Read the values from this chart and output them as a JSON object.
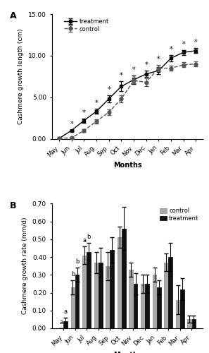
{
  "months": [
    "May",
    "Jun",
    "Jul",
    "Aug",
    "Sep",
    "Oct",
    "Nov",
    "Dec",
    "Jan",
    "Feb",
    "Mar",
    "Apr"
  ],
  "panel_A": {
    "title": "A",
    "ylabel": "Cashmere growth length (cm)",
    "xlabel": "Months",
    "ylim": [
      0,
      15.0
    ],
    "yticks": [
      0.0,
      5.0,
      10.0,
      15.0
    ],
    "control_mean": [
      0.05,
      0.12,
      1.0,
      2.1,
      3.2,
      4.8,
      7.0,
      6.8,
      8.5,
      8.5,
      8.9,
      9.0
    ],
    "control_err": [
      0.03,
      0.05,
      0.15,
      0.25,
      0.35,
      0.45,
      0.35,
      0.45,
      0.35,
      0.3,
      0.3,
      0.3
    ],
    "treatment_mean": [
      0.05,
      1.0,
      2.2,
      3.3,
      4.8,
      6.3,
      7.1,
      7.8,
      8.2,
      9.7,
      10.4,
      10.6
    ],
    "treatment_err": [
      0.03,
      0.1,
      0.25,
      0.3,
      0.4,
      0.6,
      0.5,
      0.4,
      0.4,
      0.35,
      0.3,
      0.3
    ],
    "sig_positions": [
      1,
      2,
      3,
      4,
      5,
      6,
      7,
      8,
      9,
      10,
      11
    ],
    "control_color": "#555555",
    "treatment_color": "#000000"
  },
  "panel_B": {
    "title": "B",
    "ylabel": "Cashmere growth rate (mm/d)",
    "xlabel": "Months",
    "ylim": [
      0,
      0.7
    ],
    "yticks": [
      0.0,
      0.1,
      0.2,
      0.3,
      0.4,
      0.5,
      0.6,
      0.7
    ],
    "control_mean": [
      0.0,
      0.23,
      0.41,
      0.37,
      0.35,
      0.51,
      0.33,
      0.25,
      0.3,
      0.37,
      0.16,
      0.05
    ],
    "control_err": [
      0.0,
      0.04,
      0.05,
      0.06,
      0.08,
      0.06,
      0.04,
      0.05,
      0.04,
      0.05,
      0.08,
      0.02
    ],
    "treatment_mean": [
      0.04,
      0.3,
      0.43,
      0.37,
      0.44,
      0.56,
      0.25,
      0.25,
      0.23,
      0.4,
      0.22,
      0.05
    ],
    "treatment_err": [
      0.02,
      0.04,
      0.05,
      0.08,
      0.07,
      0.12,
      0.06,
      0.05,
      0.04,
      0.08,
      0.06,
      0.02
    ],
    "control_color": "#aaaaaa",
    "treatment_color": "#111111",
    "letters": [
      [
        "a",
        "a"
      ],
      [
        "b",
        "b"
      ],
      [
        "a",
        "b"
      ],
      [
        null,
        null
      ],
      [
        null,
        null
      ],
      [
        null,
        null
      ],
      [
        null,
        null
      ],
      [
        null,
        null
      ],
      [
        null,
        null
      ],
      [
        null,
        null
      ],
      [
        null,
        null
      ],
      [
        null,
        null
      ]
    ]
  }
}
